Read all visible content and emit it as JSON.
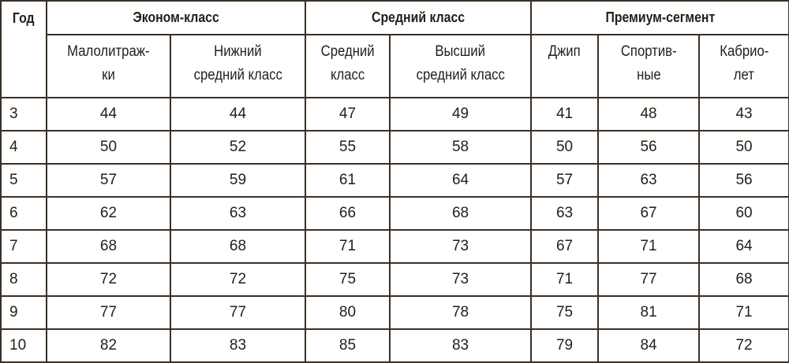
{
  "header": {
    "year": "Год",
    "groups": [
      "Эконом-класс",
      "Средний класс",
      "Премиум-сегмент"
    ],
    "subcolumns": [
      [
        "Малолитраж-",
        "ки"
      ],
      [
        "Нижний",
        "средний класс"
      ],
      [
        "Средний",
        "класс"
      ],
      [
        "Высший",
        "средний класс"
      ],
      [
        "Джип",
        ""
      ],
      [
        "Спортив-",
        "ные"
      ],
      [
        "Кабрио-",
        "лет"
      ]
    ]
  },
  "rows": [
    [
      "3",
      "44",
      "44",
      "47",
      "49",
      "41",
      "48",
      "43"
    ],
    [
      "4",
      "50",
      "52",
      "55",
      "58",
      "50",
      "56",
      "50"
    ],
    [
      "5",
      "57",
      "59",
      "61",
      "64",
      "57",
      "63",
      "56"
    ],
    [
      "6",
      "62",
      "63",
      "66",
      "68",
      "63",
      "67",
      "60"
    ],
    [
      "7",
      "68",
      "68",
      "71",
      "73",
      "67",
      "71",
      "64"
    ],
    [
      "8",
      "72",
      "72",
      "75",
      "73",
      "71",
      "77",
      "68"
    ],
    [
      "9",
      "77",
      "77",
      "80",
      "78",
      "75",
      "81",
      "71"
    ],
    [
      "10",
      "82",
      "83",
      "85",
      "83",
      "79",
      "84",
      "72"
    ]
  ],
  "colors": {
    "border": "#3b3023",
    "text": "#231f1a"
  }
}
